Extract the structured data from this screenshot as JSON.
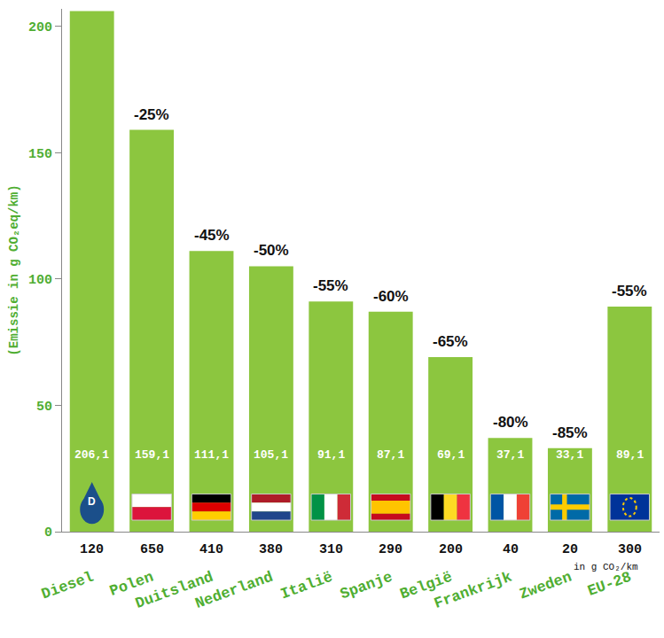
{
  "chart_data": {
    "type": "bar",
    "y_label": "(Emissie in g CO₂eq/km)",
    "categories": [
      "Diesel",
      "Polen",
      "Duitsland",
      "Nederland",
      "Italië",
      "Spanje",
      "België",
      "Frankrijk",
      "Zweden",
      "EU-28"
    ],
    "values": [
      206.1,
      159.1,
      111.1,
      105.1,
      91.1,
      87.1,
      69.1,
      37.1,
      33.1,
      89.1
    ],
    "value_labels": [
      "206,1",
      "159,1",
      "111,1",
      "105,1",
      "91,1",
      "87,1",
      "69,1",
      "37,1",
      "33,1",
      "89,1"
    ],
    "data_labels": true,
    "annotations": [
      null,
      "-25%",
      "-45%",
      "-50%",
      "-55%",
      "-60%",
      "-65%",
      "-80%",
      "-85%",
      "-55%"
    ],
    "secondary_values": [
      120,
      650,
      410,
      380,
      310,
      290,
      200,
      40,
      20,
      300
    ],
    "secondary_unit": "in g CO₂/km",
    "icon_text": "D",
    "color": "#8cc63f",
    "ylim": [
      0,
      207
    ],
    "yticks": [
      0,
      50,
      100,
      150,
      200
    ],
    "grid": false
  }
}
